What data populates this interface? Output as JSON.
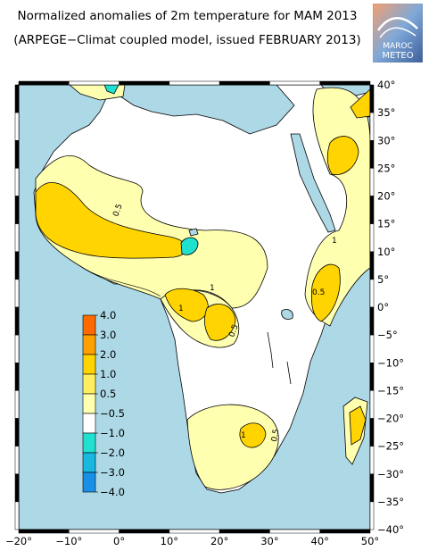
{
  "title": {
    "line1": "Normalized anomalies of 2m temperature for MAM 2013",
    "line2": "(ARPEGE−Climat coupled model, issued FEBRUARY 2013)"
  },
  "logo": {
    "text": "MAROC METEO",
    "line_top": "MAROC",
    "line_bottom": "METEO"
  },
  "lon_ticks": [
    "−20°",
    "−10°",
    "0°",
    "10°",
    "20°",
    "30°",
    "40°",
    "50°"
  ],
  "lat_ticks": [
    "40°",
    "35°",
    "30°",
    "25°",
    "20°",
    "15°",
    "10°",
    "5°",
    "0°",
    "−5°",
    "−10°",
    "−15°",
    "−20°",
    "−25°",
    "−30°",
    "−35°",
    "−40°"
  ],
  "legend": {
    "labels": [
      "4.0",
      "3.0",
      "2.0",
      "1.0",
      "0.5",
      "−0.5",
      "−1.0",
      "−2.0",
      "−3.0",
      "−4.0"
    ],
    "colors": [
      "#ff6a00",
      "#ffa000",
      "#ffd400",
      "#ffef60",
      "#ffffb0",
      "#ffffff",
      "#20e0d0",
      "#18b8e0",
      "#1890e8",
      "#1060f0"
    ]
  },
  "contour_labels": [
    "0.5",
    "1",
    "0.5",
    "1",
    "0.5",
    "1",
    "0.5",
    "1"
  ],
  "colors": {
    "ocean": "#add8e6",
    "land": "#ffffff",
    "anom_05": "#ffffb0",
    "anom_1": "#ffd400",
    "anom_neg": "#20e0d0"
  }
}
